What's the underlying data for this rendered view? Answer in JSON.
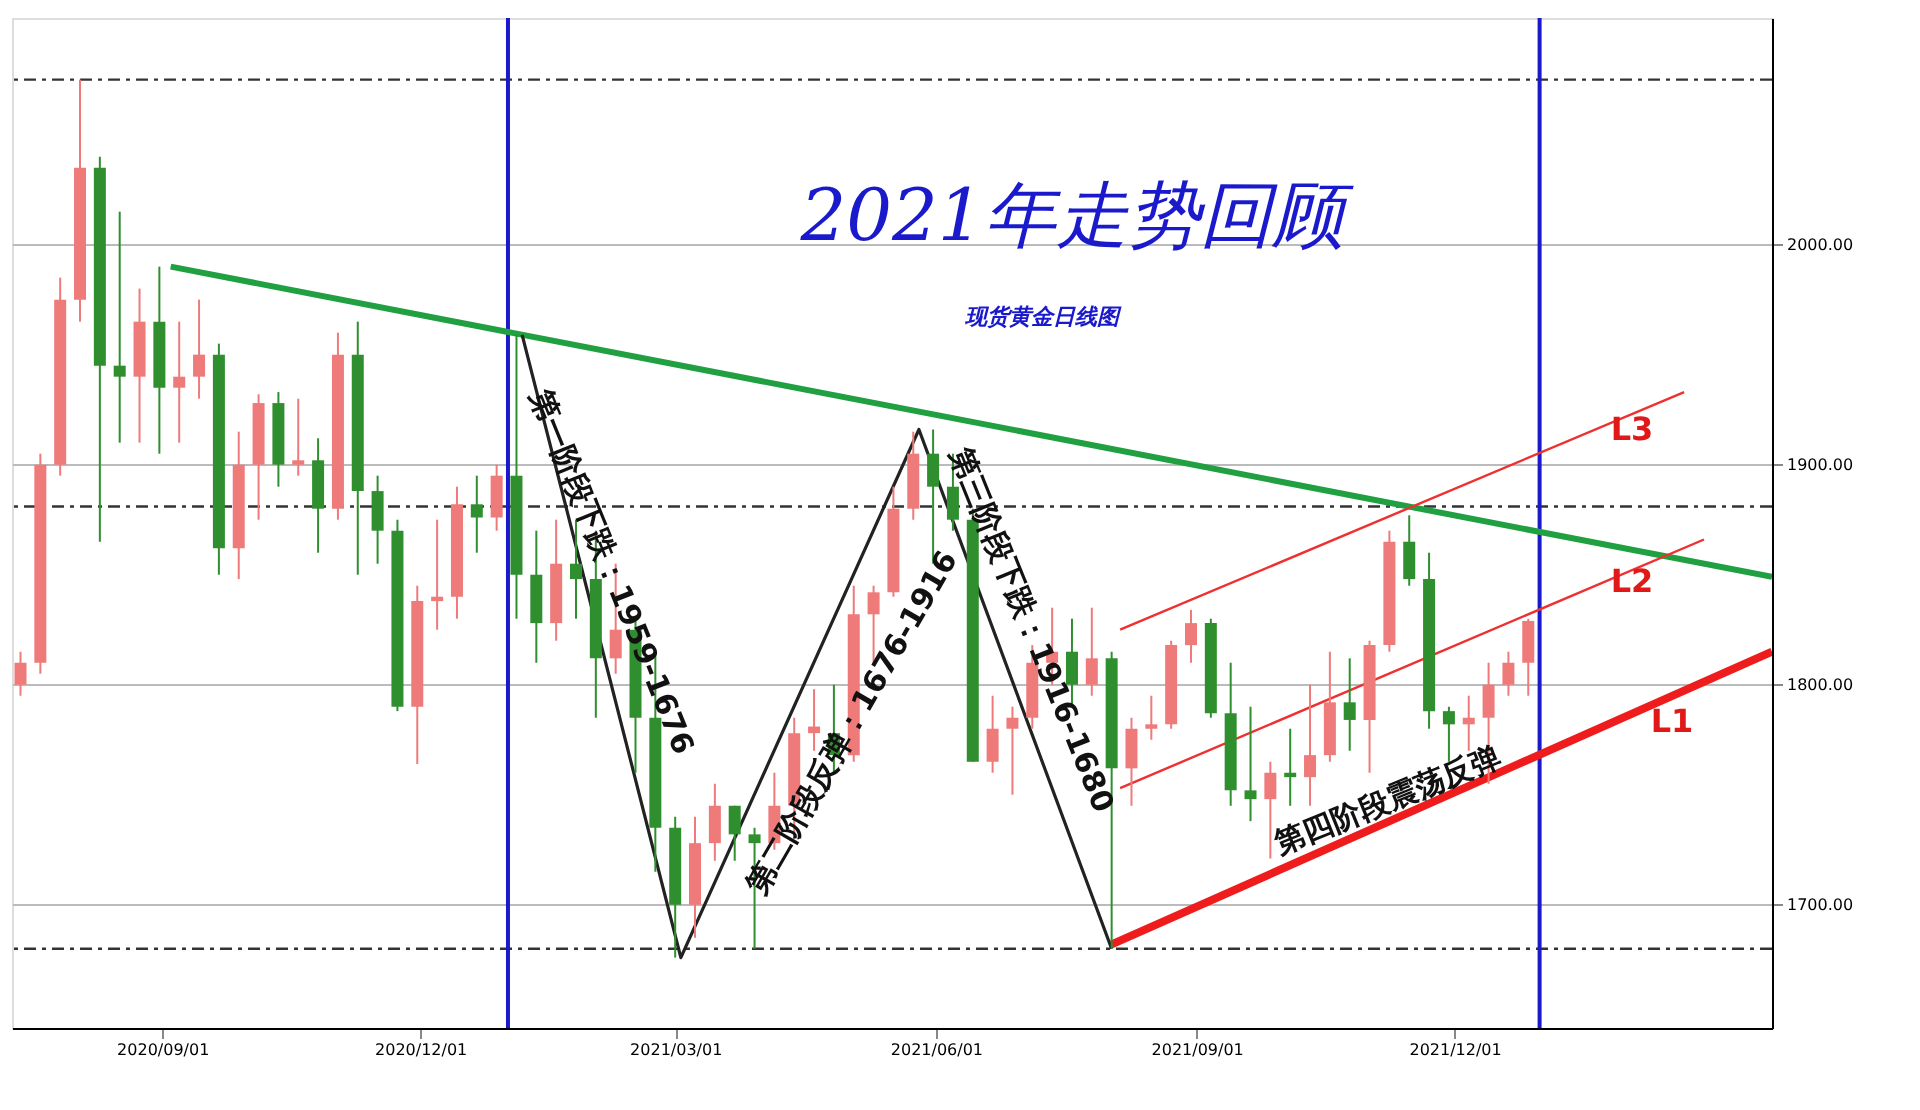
{
  "chart_data": {
    "type": "candlestick",
    "title": "2021年走势回顾",
    "subtitle": "现货黄金日线图",
    "x": [
      "2020-07-13",
      "2020-07-20",
      "2020-07-27",
      "2020-08-03",
      "2020-08-10",
      "2020-08-17",
      "2020-08-24",
      "2020-08-31",
      "2020-09-07",
      "2020-09-14",
      "2020-09-21",
      "2020-09-28",
      "2020-10-05",
      "2020-10-12",
      "2020-10-19",
      "2020-10-26",
      "2020-11-02",
      "2020-11-09",
      "2020-11-16",
      "2020-11-23",
      "2020-11-30",
      "2020-12-07",
      "2020-12-14",
      "2020-12-21",
      "2020-12-28",
      "2021-01-04",
      "2021-01-11",
      "2021-01-18",
      "2021-01-25",
      "2021-02-01",
      "2021-02-08",
      "2021-02-15",
      "2021-02-22",
      "2021-03-01",
      "2021-03-08",
      "2021-03-15",
      "2021-03-22",
      "2021-03-29",
      "2021-04-05",
      "2021-04-12",
      "2021-04-19",
      "2021-04-26",
      "2021-05-03",
      "2021-05-10",
      "2021-05-17",
      "2021-05-24",
      "2021-05-31",
      "2021-06-07",
      "2021-06-14",
      "2021-06-21",
      "2021-06-28",
      "2021-07-05",
      "2021-07-12",
      "2021-07-19",
      "2021-07-26",
      "2021-08-02",
      "2021-08-09",
      "2021-08-16",
      "2021-08-23",
      "2021-08-30",
      "2021-09-06",
      "2021-09-13",
      "2021-09-20",
      "2021-09-27",
      "2021-10-04",
      "2021-10-11",
      "2021-10-18",
      "2021-10-25",
      "2021-11-01",
      "2021-11-08",
      "2021-11-15",
      "2021-11-22",
      "2021-11-29",
      "2021-12-06",
      "2021-12-13",
      "2021-12-20",
      "2021-12-27"
    ],
    "ohlc": [
      [
        1800,
        1815,
        1795,
        1810
      ],
      [
        1810,
        1905,
        1805,
        1900
      ],
      [
        1900,
        1985,
        1895,
        1975
      ],
      [
        1975,
        2075,
        1965,
        2035
      ],
      [
        2035,
        2040,
        1865,
        1945
      ],
      [
        1945,
        2015,
        1910,
        1940
      ],
      [
        1940,
        1980,
        1910,
        1965
      ],
      [
        1965,
        1990,
        1905,
        1935
      ],
      [
        1935,
        1965,
        1910,
        1940
      ],
      [
        1940,
        1975,
        1930,
        1950
      ],
      [
        1950,
        1955,
        1850,
        1862
      ],
      [
        1862,
        1915,
        1848,
        1900
      ],
      [
        1900,
        1932,
        1875,
        1928
      ],
      [
        1928,
        1933,
        1890,
        1900
      ],
      [
        1900,
        1930,
        1895,
        1902
      ],
      [
        1902,
        1912,
        1860,
        1880
      ],
      [
        1880,
        1960,
        1875,
        1950
      ],
      [
        1950,
        1965,
        1850,
        1888
      ],
      [
        1888,
        1895,
        1855,
        1870
      ],
      [
        1870,
        1875,
        1788,
        1790
      ],
      [
        1790,
        1845,
        1764,
        1838
      ],
      [
        1838,
        1875,
        1825,
        1840
      ],
      [
        1840,
        1890,
        1830,
        1882
      ],
      [
        1882,
        1895,
        1860,
        1876
      ],
      [
        1876,
        1900,
        1870,
        1895
      ],
      [
        1895,
        1959,
        1830,
        1850
      ],
      [
        1850,
        1870,
        1810,
        1828
      ],
      [
        1828,
        1875,
        1820,
        1855
      ],
      [
        1855,
        1875,
        1830,
        1848
      ],
      [
        1848,
        1870,
        1785,
        1812
      ],
      [
        1812,
        1855,
        1805,
        1825
      ],
      [
        1825,
        1830,
        1760,
        1785
      ],
      [
        1785,
        1815,
        1715,
        1735
      ],
      [
        1735,
        1740,
        1676,
        1700
      ],
      [
        1700,
        1740,
        1685,
        1728
      ],
      [
        1728,
        1755,
        1720,
        1745
      ],
      [
        1745,
        1745,
        1720,
        1732
      ],
      [
        1732,
        1735,
        1680,
        1728
      ],
      [
        1728,
        1760,
        1725,
        1745
      ],
      [
        1745,
        1785,
        1730,
        1778
      ],
      [
        1778,
        1798,
        1770,
        1781
      ],
      [
        1778,
        1800,
        1760,
        1768
      ],
      [
        1768,
        1845,
        1765,
        1832
      ],
      [
        1832,
        1845,
        1810,
        1842
      ],
      [
        1842,
        1890,
        1840,
        1880
      ],
      [
        1880,
        1915,
        1875,
        1905
      ],
      [
        1905,
        1916,
        1855,
        1890
      ],
      [
        1890,
        1905,
        1870,
        1875
      ],
      [
        1875,
        1880,
        1765,
        1765
      ],
      [
        1765,
        1795,
        1760,
        1780
      ],
      [
        1780,
        1790,
        1750,
        1785
      ],
      [
        1785,
        1818,
        1780,
        1810
      ],
      [
        1810,
        1835,
        1800,
        1815
      ],
      [
        1815,
        1830,
        1790,
        1800
      ],
      [
        1800,
        1835,
        1795,
        1812
      ],
      [
        1812,
        1815,
        1680,
        1762
      ],
      [
        1762,
        1785,
        1745,
        1780
      ],
      [
        1780,
        1795,
        1775,
        1782
      ],
      [
        1782,
        1820,
        1780,
        1818
      ],
      [
        1818,
        1834,
        1810,
        1828
      ],
      [
        1828,
        1830,
        1785,
        1787
      ],
      [
        1787,
        1810,
        1745,
        1752
      ],
      [
        1752,
        1790,
        1738,
        1748
      ],
      [
        1748,
        1765,
        1721,
        1760
      ],
      [
        1760,
        1780,
        1745,
        1758
      ],
      [
        1758,
        1800,
        1745,
        1768
      ],
      [
        1768,
        1815,
        1765,
        1792
      ],
      [
        1792,
        1812,
        1770,
        1784
      ],
      [
        1784,
        1820,
        1760,
        1818
      ],
      [
        1818,
        1870,
        1815,
        1865
      ],
      [
        1865,
        1877,
        1845,
        1848
      ],
      [
        1848,
        1860,
        1780,
        1788
      ],
      [
        1788,
        1790,
        1765,
        1782
      ],
      [
        1782,
        1795,
        1770,
        1785
      ],
      [
        1785,
        1810,
        1755,
        1800
      ],
      [
        1800,
        1815,
        1795,
        1810
      ],
      [
        1810,
        1830,
        1795,
        1829
      ]
    ],
    "colors": [
      "#ee7a7a",
      "#ee7a7a",
      "#ee7a7a",
      "#ee7a7a",
      "#2f8f2f",
      "#2f8f2f",
      "#ee7a7a",
      "#2f8f2f",
      "#ee7a7a",
      "#ee7a7a",
      "#2f8f2f",
      "#ee7a7a",
      "#ee7a7a",
      "#2f8f2f",
      "#ee7a7a",
      "#2f8f2f",
      "#ee7a7a",
      "#2f8f2f",
      "#2f8f2f",
      "#2f8f2f",
      "#ee7a7a",
      "#ee7a7a",
      "#ee7a7a",
      "#2f8f2f",
      "#ee7a7a",
      "#2f8f2f",
      "#2f8f2f",
      "#ee7a7a",
      "#2f8f2f",
      "#2f8f2f",
      "#ee7a7a",
      "#2f8f2f",
      "#2f8f2f",
      "#2f8f2f",
      "#ee7a7a",
      "#ee7a7a",
      "#2f8f2f",
      "#2f8f2f",
      "#ee7a7a",
      "#ee7a7a",
      "#ee7a7a",
      "#2f8f2f",
      "#ee7a7a",
      "#ee7a7a",
      "#ee7a7a",
      "#ee7a7a",
      "#2f8f2f",
      "#2f8f2f",
      "#2f8f2f",
      "#ee7a7a",
      "#ee7a7a",
      "#ee7a7a",
      "#ee7a7a",
      "#2f8f2f",
      "#ee7a7a",
      "#2f8f2f",
      "#ee7a7a",
      "#ee7a7a",
      "#ee7a7a",
      "#ee7a7a",
      "#2f8f2f",
      "#2f8f2f",
      "#2f8f2f",
      "#ee7a7a",
      "#2f8f2f",
      "#ee7a7a",
      "#ee7a7a",
      "#2f8f2f",
      "#ee7a7a",
      "#ee7a7a",
      "#2f8f2f",
      "#2f8f2f",
      "#2f8f2f",
      "#ee7a7a",
      "#ee7a7a",
      "#ee7a7a",
      "#ee7a7a"
    ],
    "series": [
      {
        "type": "line",
        "x": [
          "2020-09-04",
          "2022-03-23"
        ],
        "values": [
          1990,
          1849
        ],
        "color": "#20a040"
      },
      {
        "type": "line",
        "x": [
          "2021-08-02",
          "2022-03-23"
        ],
        "values": [
          1682,
          1815
        ],
        "color": "#ee1c1c"
      },
      {
        "type": "line",
        "x": [
          "2021-08-05",
          "2022-02-27"
        ],
        "values": [
          1753,
          1866
        ],
        "color": "#ee3030"
      },
      {
        "type": "line",
        "x": [
          "2021-08-05",
          "2022-02-20"
        ],
        "values": [
          1825,
          1933
        ],
        "color": "#ee3030"
      },
      {
        "type": "line",
        "x": [
          "2021-01-06",
          "2021-03-03",
          "2021-05-26",
          "2021-08-02"
        ],
        "values": [
          1959,
          1676,
          1916,
          1680
        ],
        "color": "#222222"
      }
    ],
    "annotations": [
      "L1",
      "L2",
      "L3",
      "第一阶段下跌：1959-1676",
      "第二阶段反弹：1676-1916",
      "第三阶段下跌：1916-1680",
      "第四阶段震荡反弹"
    ],
    "xlim": [
      "2020-07-10",
      "2022-03-23"
    ],
    "ylim": [
      1644,
      2103
    ],
    "xticks": [
      {
        "value": "2020-09-01",
        "label": "2020/09/01"
      },
      {
        "value": "2020-12-01",
        "label": "2020/12/01"
      },
      {
        "value": "2021-03-01",
        "label": "2021/03/01"
      },
      {
        "value": "2021-06-01",
        "label": "2021/06/01"
      },
      {
        "value": "2021-09-01",
        "label": "2021/09/01"
      },
      {
        "value": "2021-12-01",
        "label": "2021/12/01"
      }
    ],
    "yticks": [
      {
        "value": 1700,
        "label": "1700.00"
      },
      {
        "value": 1800,
        "label": "1800.00"
      },
      {
        "value": 1900,
        "label": "1900.00"
      },
      {
        "value": 2000,
        "label": "2000.00"
      }
    ],
    "grid": "y",
    "ref_lines": [
      {
        "axis": "y",
        "value": 2075,
        "color": "#333333",
        "line_style": "dashed"
      },
      {
        "axis": "y",
        "value": 1881,
        "color": "#333333",
        "line_style": "dashed"
      },
      {
        "axis": "y",
        "value": 1680,
        "color": "#333333",
        "line_style": "dashed"
      },
      {
        "axis": "x",
        "value": "2021-01-01",
        "color": "#1a1acc",
        "line_style": "solid"
      },
      {
        "axis": "x",
        "value": "2021-12-31",
        "color": "#1a1acc",
        "line_style": "solid"
      }
    ]
  }
}
